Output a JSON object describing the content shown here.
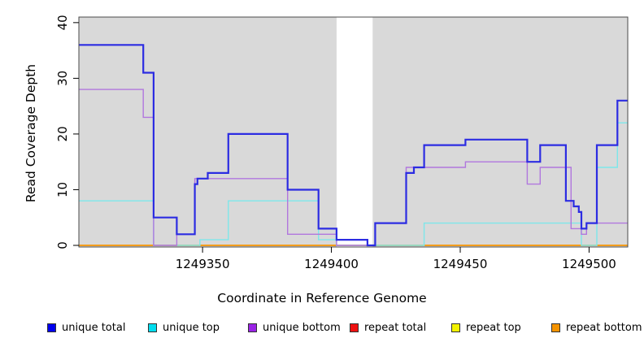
{
  "figure": {
    "background": "#FFFFFF",
    "plot_background": "#D9D9D9",
    "box_color": "#4A4A4A",
    "tick_color": "#000000"
  },
  "chart_data": {
    "type": "line",
    "subtype": "step-coverage",
    "title": "",
    "xlabel": "Coordinate in Reference Genome",
    "ylabel": "Read Coverage Depth",
    "xlim": [
      1249302,
      1249515
    ],
    "ylim": [
      0,
      41
    ],
    "x_ticks": [
      "1249350",
      "1249400",
      "1249450",
      "1249500"
    ],
    "x_tick_values": [
      1249350,
      1249400,
      1249450,
      1249500
    ],
    "y_ticks": [
      "0",
      "10",
      "20",
      "30",
      "40"
    ],
    "y_tick_values": [
      0,
      10,
      20,
      30,
      40
    ],
    "grid": false,
    "legend_position": "bottom",
    "unmapped_region": {
      "start": 1249402,
      "end": 1249416,
      "fill": "#FFFFFF"
    },
    "series": [
      {
        "name": "repeat total",
        "line_color": "#EE1111",
        "width": 1.0,
        "steps": [
          [
            1249302,
            0
          ],
          [
            1249515,
            0
          ]
        ]
      },
      {
        "name": "repeat top",
        "line_color": "#F2F200",
        "width": 1.0,
        "steps": [
          [
            1249302,
            0
          ],
          [
            1249515,
            0
          ]
        ]
      },
      {
        "name": "repeat bottom",
        "line_color": "#F59300",
        "width": 1.8,
        "steps": [
          [
            1249302,
            0
          ],
          [
            1249515,
            0
          ]
        ]
      },
      {
        "name": "unique top",
        "line_color": "#7DE7EA",
        "width": 1.4,
        "steps": [
          [
            1249302,
            8
          ],
          [
            1249331,
            0
          ],
          [
            1249349,
            1
          ],
          [
            1249360,
            8
          ],
          [
            1249395,
            1
          ],
          [
            1249402,
            0
          ],
          [
            1249436,
            4
          ],
          [
            1249497,
            0
          ],
          [
            1249503,
            14
          ],
          [
            1249511,
            22
          ],
          [
            1249515,
            22
          ]
        ]
      },
      {
        "name": "unique bottom",
        "line_color": "#B177DE",
        "width": 1.4,
        "steps": [
          [
            1249302,
            28
          ],
          [
            1249327,
            23
          ],
          [
            1249331,
            0
          ],
          [
            1249340,
            2
          ],
          [
            1249347,
            12
          ],
          [
            1249383,
            2
          ],
          [
            1249402,
            0
          ],
          [
            1249417,
            4
          ],
          [
            1249429,
            14
          ],
          [
            1249452,
            15
          ],
          [
            1249476,
            11
          ],
          [
            1249481,
            14
          ],
          [
            1249493,
            3
          ],
          [
            1249497,
            2
          ],
          [
            1249499,
            4
          ],
          [
            1249515,
            4
          ]
        ]
      },
      {
        "name": "unique total",
        "line_color": "#2C2CE2",
        "width": 2.2,
        "steps": [
          [
            1249302,
            36
          ],
          [
            1249327,
            31
          ],
          [
            1249331,
            5
          ],
          [
            1249340,
            2
          ],
          [
            1249347,
            11
          ],
          [
            1249348,
            12
          ],
          [
            1249352,
            13
          ],
          [
            1249360,
            20
          ],
          [
            1249383,
            10
          ],
          [
            1249395,
            3
          ],
          [
            1249402,
            1
          ],
          [
            1249414,
            0
          ],
          [
            1249417,
            4
          ],
          [
            1249429,
            13
          ],
          [
            1249432,
            14
          ],
          [
            1249436,
            18
          ],
          [
            1249452,
            19
          ],
          [
            1249476,
            15
          ],
          [
            1249481,
            18
          ],
          [
            1249491,
            8
          ],
          [
            1249494,
            7
          ],
          [
            1249496,
            6
          ],
          [
            1249497,
            3
          ],
          [
            1249499,
            4
          ],
          [
            1249503,
            18
          ],
          [
            1249511,
            26
          ],
          [
            1249515,
            26
          ]
        ]
      }
    ],
    "legend": [
      {
        "label": "unique total",
        "color": "#0000EE"
      },
      {
        "label": "unique top",
        "color": "#00DDEE"
      },
      {
        "label": "unique bottom",
        "color": "#9A22E6"
      },
      {
        "label": "repeat total",
        "color": "#EE1111"
      },
      {
        "label": "repeat top",
        "color": "#F2F200"
      },
      {
        "label": "repeat bottom",
        "color": "#F59300"
      }
    ]
  }
}
